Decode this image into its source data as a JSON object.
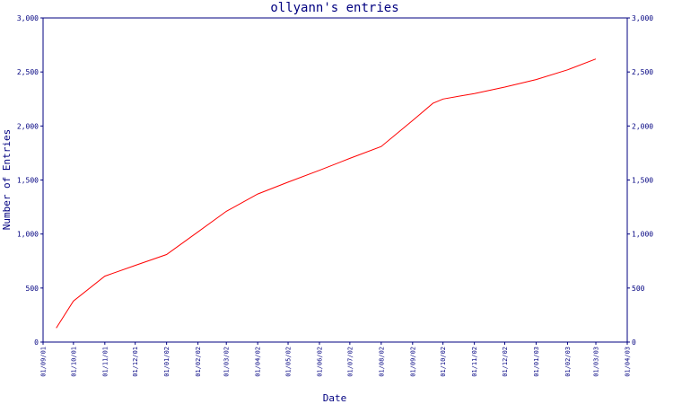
{
  "chart_data": {
    "type": "line",
    "title": "ollyann's entries",
    "xlabel": "Date",
    "ylabel": "Number of Entries",
    "ylim": [
      0,
      3000
    ],
    "y_ticks": [
      "0",
      "500",
      "1,000",
      "1,500",
      "2,000",
      "2,500",
      "3,000"
    ],
    "y_tick_values": [
      0,
      500,
      1000,
      1500,
      2000,
      2500,
      3000
    ],
    "x_ticks": [
      "01/09/01",
      "01/10/01",
      "01/11/01",
      "01/12/01",
      "01/01/02",
      "01/02/02",
      "01/03/02",
      "01/04/02",
      "01/05/02",
      "01/06/02",
      "01/07/02",
      "01/08/02",
      "01/09/02",
      "01/10/02",
      "01/11/02",
      "01/12/02",
      "01/01/03",
      "01/02/03",
      "01/03/03",
      "01/04/03"
    ],
    "grid": false,
    "colors": {
      "axis": "#000080",
      "line": "#ff0000"
    },
    "series": [
      {
        "x": [
          "2001-09-14",
          "2001-10-01",
          "2001-11-01",
          "2001-12-01",
          "2002-01-01",
          "2002-02-01",
          "2002-03-01",
          "2002-04-01",
          "2002-05-01",
          "2002-06-01",
          "2002-07-01",
          "2002-08-01",
          "2002-09-01",
          "2002-09-21",
          "2002-10-01",
          "2002-11-01",
          "2002-12-01",
          "2003-01-01",
          "2003-02-01",
          "2003-03-01"
        ],
        "values": [
          130,
          380,
          610,
          710,
          810,
          1020,
          1210,
          1370,
          1480,
          1590,
          1700,
          1810,
          2050,
          2210,
          2250,
          2300,
          2360,
          2430,
          2520,
          2620
        ]
      }
    ]
  }
}
